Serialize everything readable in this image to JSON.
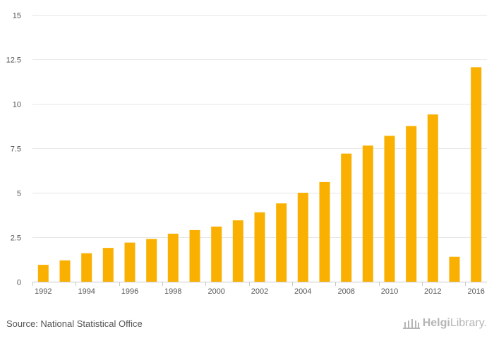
{
  "chart_data": {
    "type": "bar",
    "categories": [
      "1992",
      "1993",
      "1994",
      "1995",
      "1996",
      "1997",
      "1998",
      "1999",
      "2000",
      "2001",
      "2002",
      "2003",
      "2004",
      "2005",
      "2008",
      "2009",
      "2010",
      "2011",
      "2012",
      "2013",
      "2016"
    ],
    "values": [
      0.95,
      1.2,
      1.6,
      1.9,
      2.2,
      2.4,
      2.7,
      2.9,
      3.1,
      3.45,
      3.9,
      4.4,
      5.0,
      5.6,
      7.2,
      7.65,
      8.2,
      8.75,
      9.4,
      1.4,
      12.05
    ],
    "x_tick_labels": [
      "1992",
      "",
      "1994",
      "",
      "1996",
      "",
      "1998",
      "",
      "2000",
      "",
      "2002",
      "",
      "2004",
      "",
      "2008",
      "",
      "2010",
      "",
      "2012",
      "",
      "2016"
    ],
    "y_ticks": [
      0,
      2.5,
      5,
      7.5,
      10,
      12.5,
      15
    ],
    "y_tick_labels": [
      "0",
      "2.5",
      "5",
      "7.5",
      "10",
      "12.5",
      "15"
    ],
    "ylim": [
      0,
      15
    ],
    "title": "",
    "xlabel": "",
    "ylabel": "",
    "grid": true,
    "bar_color": "#f9b000"
  },
  "footer": {
    "source": "Source: National Statistical Office",
    "brand_bold": "Helgi",
    "brand_light": "Library."
  }
}
